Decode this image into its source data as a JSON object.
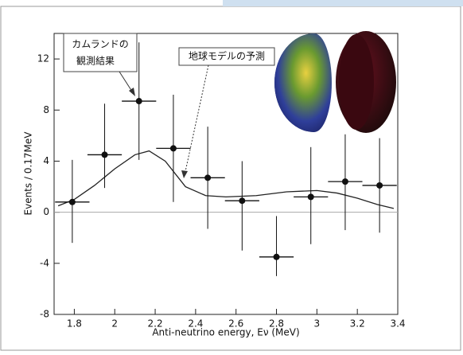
{
  "chart_data": {
    "type": "scatter",
    "x_label": "Anti-neutrino energy,  Eν (MeV)",
    "y_label": "Events / 0.17MeV",
    "x": [
      1.79,
      1.95,
      2.12,
      2.29,
      2.46,
      2.63,
      2.8,
      2.97,
      3.14,
      3.31
    ],
    "values": [
      0.8,
      4.5,
      8.7,
      5.0,
      2.7,
      0.9,
      -3.5,
      1.2,
      2.4,
      2.1
    ],
    "xerr": [
      0.085,
      0.085,
      0.085,
      0.085,
      0.085,
      0.085,
      0.085,
      0.085,
      0.085,
      0.085
    ],
    "yerr_low": [
      3.2,
      2.6,
      4.6,
      4.2,
      4.0,
      3.9,
      1.5,
      3.7,
      3.8,
      3.7
    ],
    "yerr_high": [
      3.3,
      4.0,
      4.6,
      4.2,
      4.0,
      3.1,
      3.2,
      3.9,
      3.7,
      3.7
    ],
    "color": "#111111",
    "curve": {
      "x": [
        1.72,
        1.8,
        1.9,
        2.0,
        2.1,
        2.17,
        2.25,
        2.35,
        2.45,
        2.55,
        2.7,
        2.85,
        3.0,
        3.1,
        3.2,
        3.3,
        3.38
      ],
      "values": [
        0.5,
        1.0,
        2.1,
        3.4,
        4.5,
        4.8,
        4.0,
        2.0,
        1.3,
        1.2,
        1.3,
        1.6,
        1.7,
        1.5,
        1.1,
        0.6,
        0.3
      ],
      "color": "#222222"
    },
    "xlim": [
      1.7,
      3.4
    ],
    "xticks": [
      1.8,
      2,
      2.2,
      2.4,
      2.6,
      2.8,
      3,
      3.2,
      3.4
    ],
    "ylim": [
      -8,
      14
    ],
    "yticks": [
      -8,
      -4,
      0,
      4,
      8,
      12
    ],
    "annotations": [
      "カムランドの",
      "観測結果",
      "地球モデルの予測"
    ]
  }
}
